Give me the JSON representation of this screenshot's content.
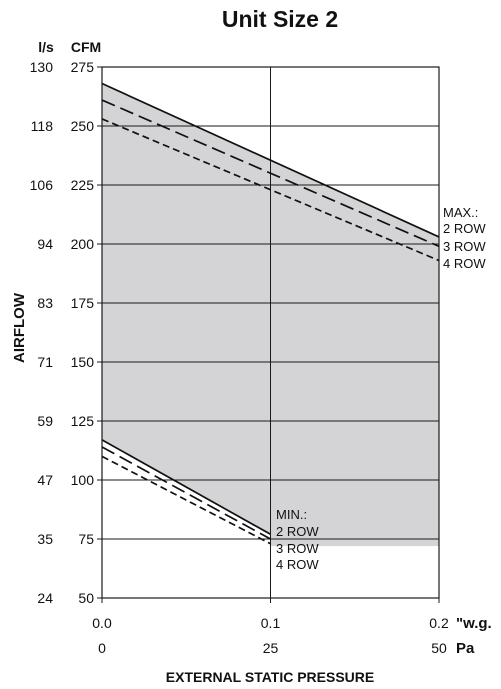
{
  "chart_data": {
    "type": "line",
    "title": "Unit Size 2",
    "xlabel": "EXTERNAL STATIC PRESSURE",
    "ylabel": "AIRFLOW",
    "x_axis": {
      "primary_unit": "\"w.g.",
      "secondary_unit": "Pa",
      "xlim": [
        0,
        0.2
      ],
      "ticks": [
        0,
        0.1,
        0.2
      ],
      "tick_labels": [
        "0.0",
        "0.1",
        "0.2"
      ],
      "secondary_tick_labels": [
        "0",
        "25",
        "50"
      ]
    },
    "y_axis": {
      "left_unit": "l/s",
      "right_unit": "CFM",
      "ylim": [
        50,
        275
      ],
      "ticks": [
        50,
        75,
        100,
        125,
        150,
        175,
        200,
        225,
        250,
        275
      ],
      "cfm_labels": [
        "50",
        "75",
        "100",
        "125",
        "150",
        "175",
        "200",
        "225",
        "250",
        "275"
      ],
      "ls_labels": [
        "24",
        "35",
        "47",
        "59",
        "71",
        "83",
        "94",
        "106",
        "118",
        "130"
      ]
    },
    "grid": true,
    "shaded_region": {
      "upper": [
        [
          0,
          268
        ],
        [
          0.2,
          203
        ]
      ],
      "lower": [
        [
          0,
          117
        ],
        [
          0.1,
          77
        ],
        [
          0.1,
          72
        ],
        [
          0.2,
          72
        ]
      ]
    },
    "series": [
      {
        "name": "2 ROW",
        "group": "max",
        "style": "solid",
        "x": [
          0,
          0.2
        ],
        "y": [
          268,
          203
        ]
      },
      {
        "name": "3 ROW",
        "group": "max",
        "style": "longdash",
        "x": [
          0,
          0.2
        ],
        "y": [
          261,
          199
        ]
      },
      {
        "name": "4 ROW",
        "group": "max",
        "style": "shortdash",
        "x": [
          0,
          0.2
        ],
        "y": [
          253,
          193
        ]
      },
      {
        "name": "2 ROW",
        "group": "min",
        "style": "solid",
        "x": [
          0,
          0.1
        ],
        "y": [
          117,
          77
        ]
      },
      {
        "name": "3 ROW",
        "group": "min",
        "style": "longdash",
        "x": [
          0,
          0.1
        ],
        "y": [
          114,
          75
        ]
      },
      {
        "name": "4 ROW",
        "group": "min",
        "style": "shortdash",
        "x": [
          0,
          0.1
        ],
        "y": [
          110,
          73
        ]
      }
    ],
    "annotations": {
      "max": {
        "heading": "MAX.:",
        "rows": [
          "2 ROW",
          "3 ROW",
          "4 ROW"
        ]
      },
      "min": {
        "heading": "MIN.:",
        "rows": [
          "2 ROW",
          "3 ROW",
          "4 ROW"
        ]
      }
    }
  }
}
